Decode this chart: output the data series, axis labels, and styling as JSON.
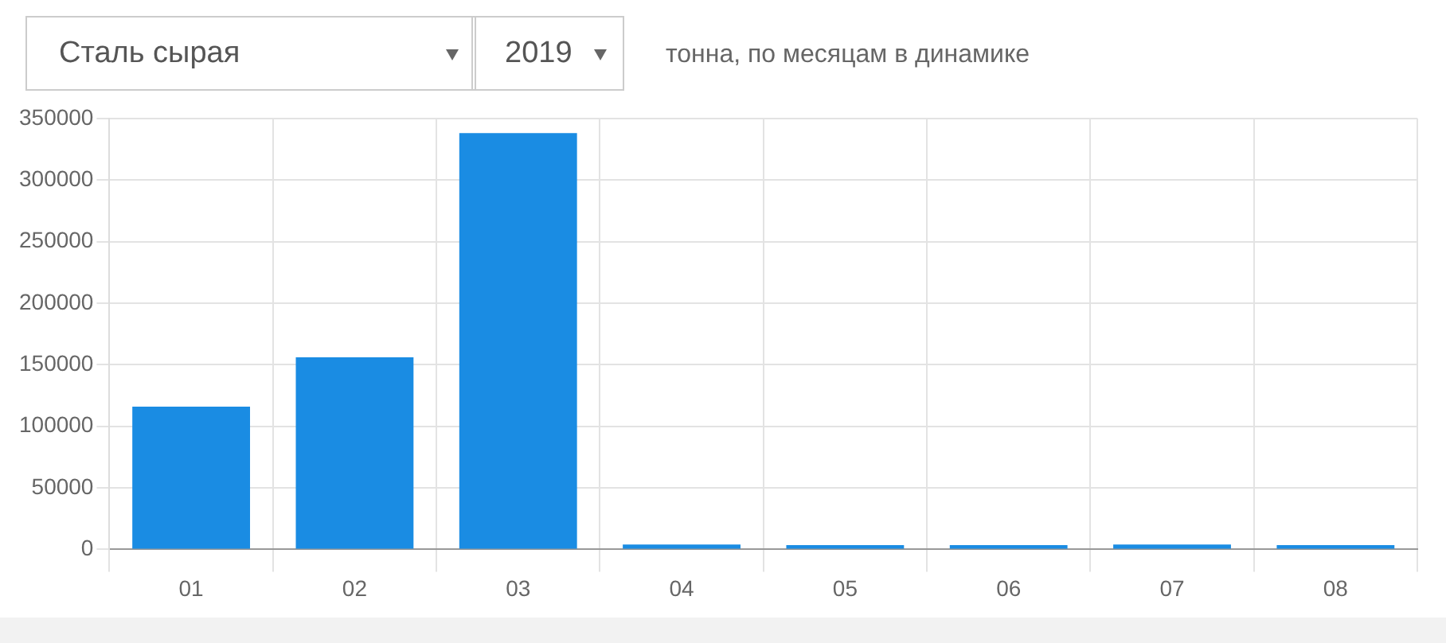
{
  "chart_data": {
    "type": "bar",
    "annotations": [
      "Сталь сырая",
      "2019",
      "тонна, по месяцам в динамике"
    ],
    "categories": [
      "01",
      "02",
      "03",
      "04",
      "05",
      "06",
      "07",
      "08"
    ],
    "values": [
      116000,
      156000,
      338000,
      4000,
      3500,
      3500,
      4000,
      3500
    ],
    "color": "#1a8ce3",
    "ylim": [
      0,
      350000
    ],
    "yticks": [
      0,
      50000,
      100000,
      150000,
      200000,
      250000,
      300000,
      350000
    ],
    "grid": true,
    "legend": false
  }
}
